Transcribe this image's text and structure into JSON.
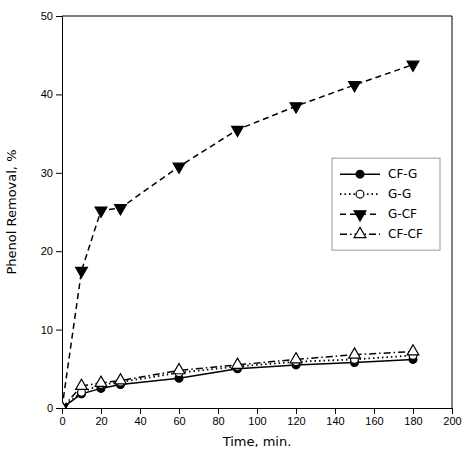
{
  "chart_data": {
    "type": "line",
    "xlabel": "Time, min.",
    "ylabel": "Phenol Removal, %",
    "x": [
      0,
      10,
      20,
      30,
      60,
      90,
      120,
      150,
      180
    ],
    "series": [
      {
        "name": "CF-G",
        "color": "#000000",
        "marker": "circle",
        "line_style": "solid",
        "values": [
          0,
          1.8,
          2.5,
          3.0,
          3.8,
          5.0,
          5.5,
          5.8,
          6.2
        ]
      },
      {
        "name": "G-G",
        "color": "#000000",
        "marker": "circle-open",
        "line_style": "dotted",
        "values": [
          0,
          2.0,
          3.0,
          3.3,
          4.5,
          5.3,
          5.9,
          6.2,
          6.7
        ]
      },
      {
        "name": "G-CF",
        "color": "#000000",
        "marker": "triangle-down",
        "line_style": "dashed",
        "values": [
          0,
          17.5,
          25.2,
          25.5,
          30.8,
          35.5,
          38.5,
          41.2,
          43.8
        ]
      },
      {
        "name": "CF-CF",
        "color": "#000000",
        "marker": "triangle-up-open",
        "line_style": "dashdot",
        "values": [
          0,
          2.8,
          3.2,
          3.5,
          4.8,
          5.5,
          6.2,
          6.8,
          7.2
        ]
      }
    ],
    "xlim": [
      0,
      200
    ],
    "ylim": [
      0,
      50
    ],
    "xticks": [
      0,
      20,
      40,
      60,
      80,
      100,
      120,
      140,
      160,
      180,
      200
    ],
    "yticks": [
      0,
      10,
      20,
      30,
      40,
      50
    ],
    "legend": "right",
    "grid": false
  }
}
